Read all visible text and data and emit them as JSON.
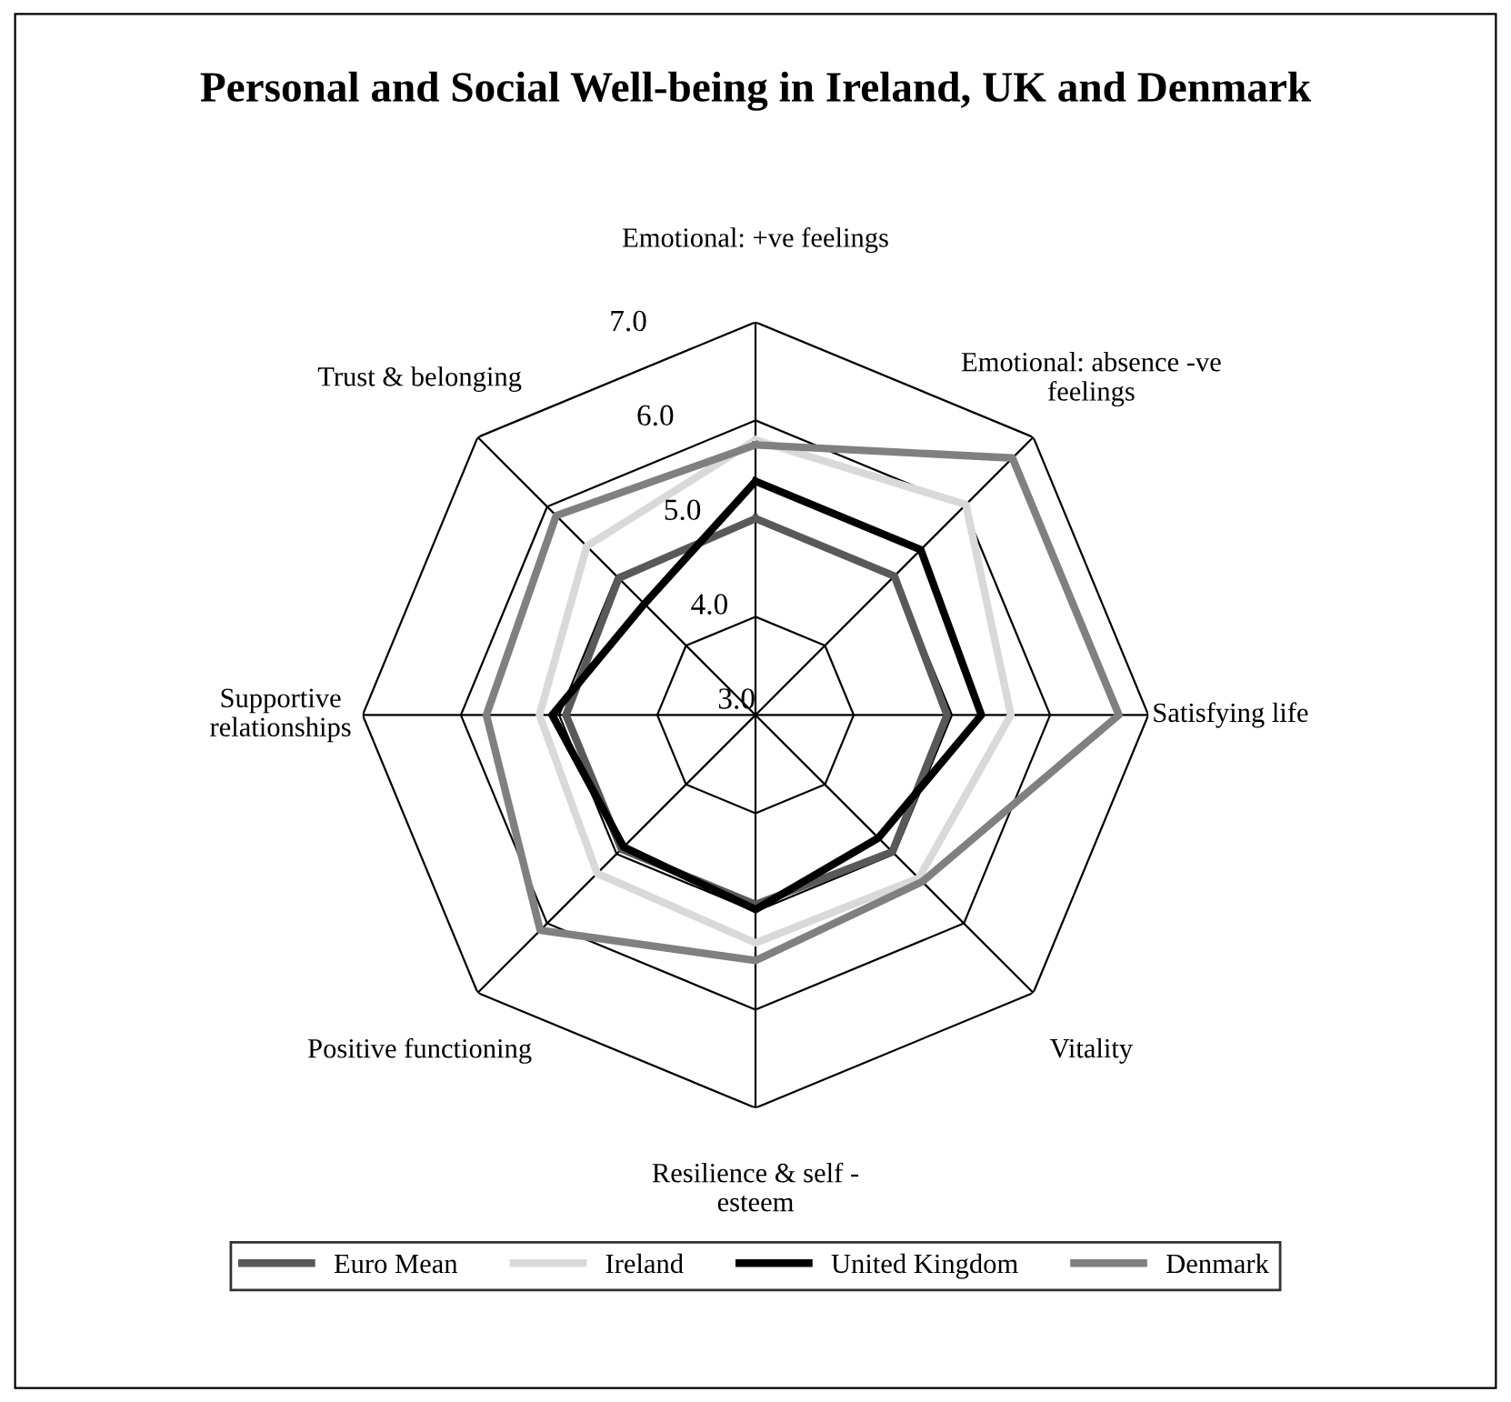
{
  "chart_data": {
    "type": "radar",
    "title": "Personal and Social Well-being in Ireland, UK and Denmark",
    "categories": [
      "Emotional: +ve feelings",
      "Emotional: absence -ve\nfeelings",
      "Satisfying life",
      "Vitality",
      "Resilience & self -\nesteem",
      "Positive functioning",
      "Supportive\nrelationships",
      "Trust & belonging"
    ],
    "series": [
      {
        "name": "Euro Mean",
        "color": "#595959",
        "values": [
          5.0,
          5.0,
          4.95,
          4.97,
          4.93,
          4.93,
          4.93,
          4.97
        ]
      },
      {
        "name": "Ireland",
        "color": "#d9d9d9",
        "values": [
          5.8,
          6.03,
          5.6,
          5.35,
          5.32,
          5.28,
          5.2,
          5.43
        ]
      },
      {
        "name": "United Kingdom",
        "color": "#000000",
        "values": [
          5.38,
          5.38,
          5.3,
          4.77,
          4.98,
          4.9,
          5.07,
          4.6
        ]
      },
      {
        "name": "Denmark",
        "color": "#808080",
        "values": [
          5.75,
          6.7,
          6.7,
          5.4,
          5.5,
          6.1,
          5.74,
          5.87
        ]
      }
    ],
    "ylim": [
      3,
      7
    ],
    "yticks": [
      {
        "value": 3,
        "label": "3.0"
      },
      {
        "value": 4,
        "label": "4.0"
      },
      {
        "value": 5,
        "label": "5.0"
      },
      {
        "value": 6,
        "label": "6.0"
      },
      {
        "value": 7,
        "label": "7.0"
      }
    ],
    "grid": true,
    "legend": "bottom",
    "marker": "none",
    "line_style": "solid"
  }
}
